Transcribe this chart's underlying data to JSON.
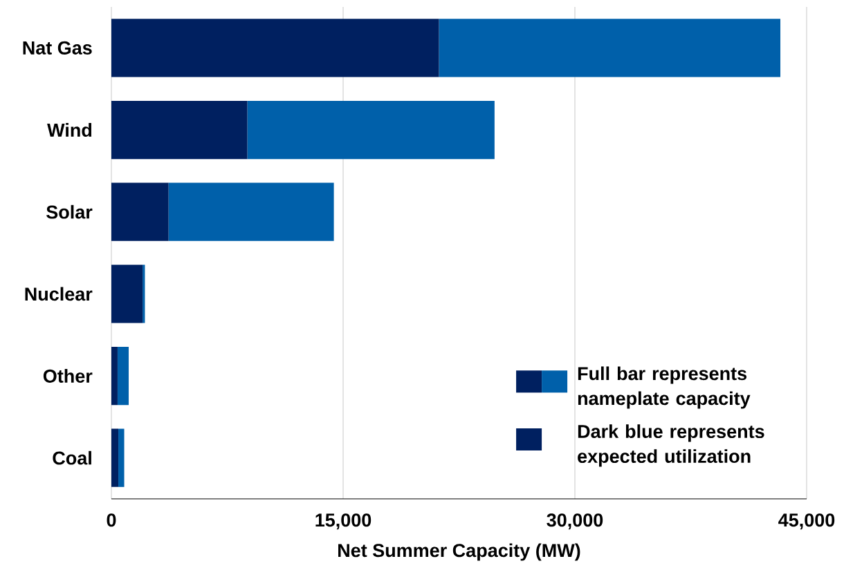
{
  "chart_data": {
    "type": "bar",
    "orientation": "horizontal",
    "stacked": true,
    "xlabel": "Net Summer Capacity (MW)",
    "categories": [
      "Nat Gas",
      "Wind",
      "Solar",
      "Nuclear",
      "Other",
      "Coal"
    ],
    "series": [
      {
        "name": "Dark blue represents expected utilization",
        "color": "#002060",
        "values": [
          21200,
          8800,
          3700,
          2020,
          400,
          450
        ]
      },
      {
        "name": "Full bar represents nameplate capacity",
        "color": "#0060aa",
        "values": [
          22100,
          16000,
          10700,
          150,
          720,
          380
        ]
      }
    ],
    "xlim": [
      0,
      45000
    ],
    "xticks": [
      {
        "value": 0,
        "label": "0"
      },
      {
        "value": 15000,
        "label": "15,000"
      },
      {
        "value": 30000,
        "label": "30,000"
      },
      {
        "value": 45000,
        "label": "45,000"
      }
    ],
    "grid": "x",
    "legend": "bottom right"
  }
}
